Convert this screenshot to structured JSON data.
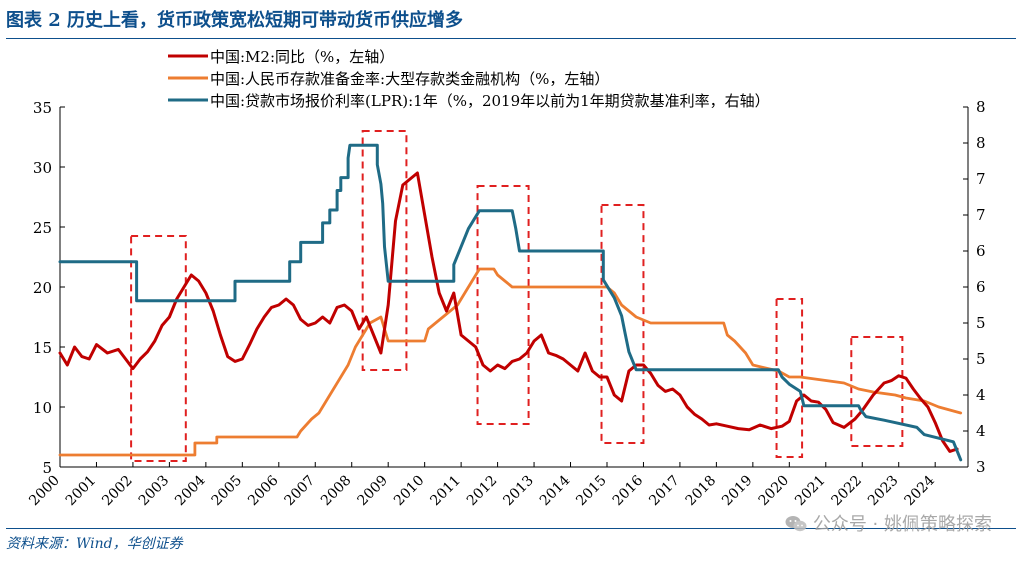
{
  "header": {
    "title": "图表 2   历史上看，货币政策宽松短期可带动货币供应增多"
  },
  "footer": {
    "source": "资料来源：Wind，华创证券"
  },
  "watermark": {
    "text": "公众号 · 姚佩策略探索"
  },
  "chart_data": {
    "type": "line",
    "title": "",
    "grid": false,
    "legend_position": "top-left",
    "x_tick_labels": [
      "2000",
      "2001",
      "2002",
      "2003",
      "2004",
      "2005",
      "2006",
      "2007",
      "2008",
      "2009",
      "2010",
      "2011",
      "2012",
      "2013",
      "2014",
      "2015",
      "2016",
      "2017",
      "2018",
      "2019",
      "2020",
      "2021",
      "2022",
      "2023",
      "2024"
    ],
    "y_left": {
      "range": [
        5,
        35
      ],
      "ticks": [
        5,
        10,
        15,
        20,
        25,
        30,
        35
      ]
    },
    "y_right": {
      "range": [
        3,
        8
      ],
      "ticks": [
        3,
        3.5,
        4,
        4.5,
        5,
        5.5,
        6,
        6.5,
        7,
        7.5,
        8
      ],
      "tick_labels": [
        "3",
        "4",
        "4",
        "5",
        "5",
        "6",
        "6",
        "7",
        "7",
        "8",
        "8"
      ]
    },
    "series": [
      {
        "name": "中国:M2:同比（%，左轴）",
        "axis": "left",
        "color": "#c00000",
        "points": [
          [
            2000.0,
            14.5
          ],
          [
            2000.2,
            13.5
          ],
          [
            2000.4,
            15.0
          ],
          [
            2000.6,
            14.2
          ],
          [
            2000.8,
            14.0
          ],
          [
            2001.0,
            15.2
          ],
          [
            2001.3,
            14.5
          ],
          [
            2001.6,
            14.8
          ],
          [
            2001.8,
            14.0
          ],
          [
            2002.0,
            13.2
          ],
          [
            2002.2,
            14.0
          ],
          [
            2002.4,
            14.6
          ],
          [
            2002.6,
            15.5
          ],
          [
            2002.8,
            16.8
          ],
          [
            2003.0,
            17.5
          ],
          [
            2003.2,
            19.0
          ],
          [
            2003.4,
            20.0
          ],
          [
            2003.6,
            21.0
          ],
          [
            2003.8,
            20.5
          ],
          [
            2004.0,
            19.5
          ],
          [
            2004.2,
            18.0
          ],
          [
            2004.4,
            16.0
          ],
          [
            2004.6,
            14.2
          ],
          [
            2004.8,
            13.8
          ],
          [
            2005.0,
            14.0
          ],
          [
            2005.2,
            15.2
          ],
          [
            2005.4,
            16.5
          ],
          [
            2005.6,
            17.5
          ],
          [
            2005.8,
            18.3
          ],
          [
            2006.0,
            18.5
          ],
          [
            2006.2,
            19.0
          ],
          [
            2006.4,
            18.5
          ],
          [
            2006.6,
            17.3
          ],
          [
            2006.8,
            16.8
          ],
          [
            2007.0,
            17.0
          ],
          [
            2007.2,
            17.5
          ],
          [
            2007.4,
            17.0
          ],
          [
            2007.6,
            18.3
          ],
          [
            2007.8,
            18.5
          ],
          [
            2008.0,
            18.0
          ],
          [
            2008.2,
            16.5
          ],
          [
            2008.4,
            17.5
          ],
          [
            2008.6,
            16.0
          ],
          [
            2008.8,
            14.5
          ],
          [
            2009.0,
            18.5
          ],
          [
            2009.2,
            25.5
          ],
          [
            2009.4,
            28.5
          ],
          [
            2009.6,
            29.0
          ],
          [
            2009.8,
            29.5
          ],
          [
            2010.0,
            26.0
          ],
          [
            2010.2,
            22.5
          ],
          [
            2010.4,
            19.5
          ],
          [
            2010.6,
            18.0
          ],
          [
            2010.8,
            19.5
          ],
          [
            2011.0,
            16.0
          ],
          [
            2011.2,
            15.5
          ],
          [
            2011.4,
            15.0
          ],
          [
            2011.6,
            13.5
          ],
          [
            2011.8,
            13.0
          ],
          [
            2012.0,
            13.5
          ],
          [
            2012.2,
            13.2
          ],
          [
            2012.4,
            13.8
          ],
          [
            2012.6,
            14.0
          ],
          [
            2012.8,
            14.5
          ],
          [
            2013.0,
            15.5
          ],
          [
            2013.2,
            16.0
          ],
          [
            2013.4,
            14.5
          ],
          [
            2013.6,
            14.3
          ],
          [
            2013.8,
            14.0
          ],
          [
            2014.0,
            13.5
          ],
          [
            2014.2,
            13.0
          ],
          [
            2014.4,
            14.5
          ],
          [
            2014.6,
            13.0
          ],
          [
            2014.8,
            12.5
          ],
          [
            2015.0,
            12.5
          ],
          [
            2015.2,
            11.0
          ],
          [
            2015.4,
            10.5
          ],
          [
            2015.6,
            13.0
          ],
          [
            2015.8,
            13.5
          ],
          [
            2016.0,
            13.5
          ],
          [
            2016.2,
            12.8
          ],
          [
            2016.4,
            11.8
          ],
          [
            2016.6,
            11.3
          ],
          [
            2016.8,
            11.5
          ],
          [
            2017.0,
            11.0
          ],
          [
            2017.2,
            10.0
          ],
          [
            2017.4,
            9.4
          ],
          [
            2017.6,
            9.0
          ],
          [
            2017.8,
            8.5
          ],
          [
            2018.0,
            8.6
          ],
          [
            2018.3,
            8.4
          ],
          [
            2018.6,
            8.2
          ],
          [
            2018.9,
            8.1
          ],
          [
            2019.2,
            8.5
          ],
          [
            2019.5,
            8.2
          ],
          [
            2019.8,
            8.4
          ],
          [
            2020.0,
            8.8
          ],
          [
            2020.2,
            10.5
          ],
          [
            2020.4,
            11.0
          ],
          [
            2020.6,
            10.5
          ],
          [
            2020.8,
            10.4
          ],
          [
            2021.0,
            9.8
          ],
          [
            2021.2,
            8.7
          ],
          [
            2021.5,
            8.3
          ],
          [
            2021.8,
            9.0
          ],
          [
            2022.0,
            9.7
          ],
          [
            2022.3,
            11.0
          ],
          [
            2022.6,
            12.0
          ],
          [
            2022.8,
            12.2
          ],
          [
            2023.0,
            12.6
          ],
          [
            2023.2,
            12.4
          ],
          [
            2023.4,
            11.5
          ],
          [
            2023.6,
            10.7
          ],
          [
            2023.8,
            10.0
          ],
          [
            2024.0,
            8.7
          ],
          [
            2024.2,
            7.2
          ],
          [
            2024.4,
            6.3
          ],
          [
            2024.6,
            6.5
          ]
        ]
      },
      {
        "name": "中国:人民币存款准备金率:大型存款类金融机构（%，左轴）",
        "axis": "left",
        "color": "#ed7d31",
        "points": [
          [
            2000.0,
            6.0
          ],
          [
            2003.7,
            6.0
          ],
          [
            2003.7,
            7.0
          ],
          [
            2004.3,
            7.0
          ],
          [
            2004.3,
            7.5
          ],
          [
            2006.5,
            7.5
          ],
          [
            2006.6,
            8.0
          ],
          [
            2006.9,
            9.0
          ],
          [
            2007.1,
            9.5
          ],
          [
            2007.3,
            10.5
          ],
          [
            2007.5,
            11.5
          ],
          [
            2007.7,
            12.5
          ],
          [
            2007.9,
            13.5
          ],
          [
            2008.1,
            15.0
          ],
          [
            2008.3,
            16.0
          ],
          [
            2008.5,
            17.0
          ],
          [
            2008.8,
            17.5
          ],
          [
            2008.9,
            16.5
          ],
          [
            2009.0,
            15.5
          ],
          [
            2010.0,
            15.5
          ],
          [
            2010.1,
            16.5
          ],
          [
            2010.3,
            17.0
          ],
          [
            2010.5,
            17.5
          ],
          [
            2010.9,
            18.5
          ],
          [
            2011.1,
            19.5
          ],
          [
            2011.3,
            20.5
          ],
          [
            2011.5,
            21.5
          ],
          [
            2011.9,
            21.5
          ],
          [
            2012.0,
            21.0
          ],
          [
            2012.2,
            20.5
          ],
          [
            2012.4,
            20.0
          ],
          [
            2015.0,
            20.0
          ],
          [
            2015.2,
            19.5
          ],
          [
            2015.4,
            18.5
          ],
          [
            2015.6,
            18.0
          ],
          [
            2015.8,
            17.5
          ],
          [
            2016.2,
            17.0
          ],
          [
            2018.2,
            17.0
          ],
          [
            2018.3,
            16.0
          ],
          [
            2018.5,
            15.5
          ],
          [
            2018.8,
            14.5
          ],
          [
            2019.0,
            13.5
          ],
          [
            2019.7,
            13.0
          ],
          [
            2020.0,
            12.5
          ],
          [
            2020.3,
            12.5
          ],
          [
            2021.5,
            12.0
          ],
          [
            2021.9,
            11.5
          ],
          [
            2022.3,
            11.25
          ],
          [
            2022.9,
            11.0
          ],
          [
            2023.2,
            10.75
          ],
          [
            2023.7,
            10.5
          ],
          [
            2024.1,
            10.0
          ],
          [
            2024.7,
            9.5
          ]
        ]
      },
      {
        "name": "中国:贷款市场报价利率(LPR):1年（%，2019年以前为1年期贷款基准利率，右轴）",
        "axis": "right",
        "color": "#1f6b86",
        "points": [
          [
            2000.0,
            5.85
          ],
          [
            2002.1,
            5.85
          ],
          [
            2002.1,
            5.31
          ],
          [
            2004.8,
            5.31
          ],
          [
            2004.8,
            5.58
          ],
          [
            2006.3,
            5.58
          ],
          [
            2006.3,
            5.85
          ],
          [
            2006.6,
            5.85
          ],
          [
            2006.6,
            6.12
          ],
          [
            2007.2,
            6.12
          ],
          [
            2007.2,
            6.39
          ],
          [
            2007.4,
            6.39
          ],
          [
            2007.4,
            6.57
          ],
          [
            2007.6,
            6.57
          ],
          [
            2007.6,
            6.84
          ],
          [
            2007.7,
            6.84
          ],
          [
            2007.7,
            7.02
          ],
          [
            2007.9,
            7.02
          ],
          [
            2007.9,
            7.29
          ],
          [
            2007.95,
            7.47
          ],
          [
            2008.7,
            7.47
          ],
          [
            2008.7,
            7.2
          ],
          [
            2008.8,
            6.93
          ],
          [
            2008.85,
            6.66
          ],
          [
            2008.9,
            6.06
          ],
          [
            2009.0,
            5.58
          ],
          [
            2010.8,
            5.58
          ],
          [
            2010.8,
            5.81
          ],
          [
            2011.0,
            6.06
          ],
          [
            2011.2,
            6.31
          ],
          [
            2011.5,
            6.56
          ],
          [
            2012.4,
            6.56
          ],
          [
            2012.5,
            6.31
          ],
          [
            2012.6,
            6.0
          ],
          [
            2014.9,
            6.0
          ],
          [
            2014.9,
            5.6
          ],
          [
            2015.2,
            5.35
          ],
          [
            2015.4,
            5.1
          ],
          [
            2015.5,
            4.85
          ],
          [
            2015.6,
            4.6
          ],
          [
            2015.8,
            4.35
          ],
          [
            2019.7,
            4.35
          ],
          [
            2019.8,
            4.25
          ],
          [
            2020.0,
            4.15
          ],
          [
            2020.3,
            4.05
          ],
          [
            2020.4,
            3.85
          ],
          [
            2021.9,
            3.85
          ],
          [
            2021.95,
            3.8
          ],
          [
            2022.1,
            3.7
          ],
          [
            2022.6,
            3.65
          ],
          [
            2023.5,
            3.55
          ],
          [
            2023.7,
            3.45
          ],
          [
            2024.5,
            3.35
          ],
          [
            2024.7,
            3.1
          ]
        ]
      }
    ],
    "highlight_periods": [
      [
        2001.95,
        2003.45
      ],
      [
        2008.3,
        2009.5
      ],
      [
        2011.45,
        2012.85
      ],
      [
        2014.85,
        2016.0
      ],
      [
        2019.65,
        2020.35
      ],
      [
        2021.7,
        2023.1
      ]
    ]
  }
}
